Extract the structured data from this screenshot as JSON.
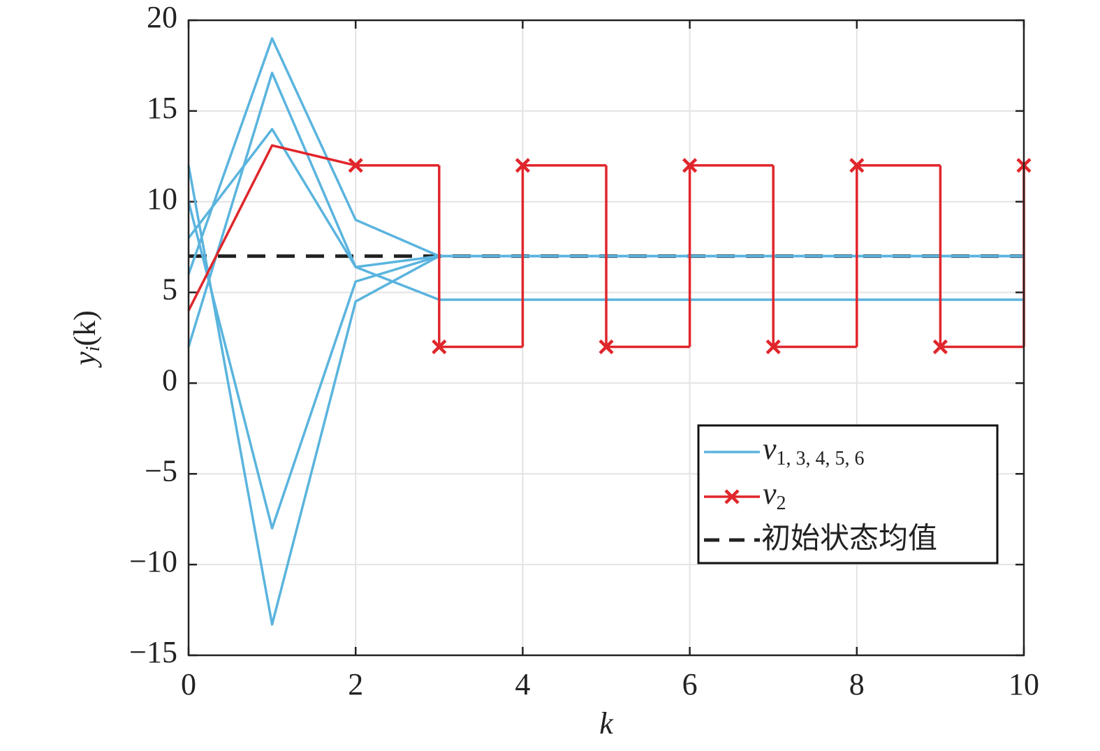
{
  "chart_data": {
    "type": "line",
    "xlabel": "k",
    "ylabel": {
      "base": "y",
      "sub": "i",
      "rest": "(k)"
    },
    "x": [
      0,
      1,
      2,
      3,
      4,
      5,
      6,
      7,
      8,
      9,
      10
    ],
    "xlim": [
      0,
      10
    ],
    "xticks": [
      0,
      2,
      4,
      6,
      8,
      10
    ],
    "ylim": [
      -15,
      20
    ],
    "yticks": [
      {
        "value": -15,
        "label": "−15"
      },
      {
        "value": -10,
        "label": "−10"
      },
      {
        "value": -5,
        "label": "−5"
      },
      0,
      5,
      10,
      15,
      20
    ],
    "grid": true,
    "legend_loc": "lower right",
    "series": [
      {
        "name": "v",
        "name_sub": "1, 3, 4, 5, 6",
        "color": "#5ab4de",
        "values": [
          6,
          19,
          9,
          7,
          7,
          7,
          7,
          7,
          7,
          7,
          7
        ]
      },
      {
        "color": "#5ab4de",
        "values": [
          2,
          17.1,
          6.4,
          4.6,
          4.6,
          4.6,
          4.6,
          4.6,
          4.6,
          4.6,
          4.6
        ]
      },
      {
        "color": "#5ab4de",
        "values": [
          8,
          14,
          6.4,
          7,
          7,
          7,
          7,
          7,
          7,
          7,
          7
        ]
      },
      {
        "color": "#5ab4de",
        "values": [
          10,
          -8,
          5.6,
          7,
          7,
          7,
          7,
          7,
          7,
          7,
          7
        ]
      },
      {
        "color": "#5ab4de",
        "values": [
          12,
          -13.3,
          4.5,
          7,
          7,
          7,
          7,
          7,
          7,
          7,
          7
        ]
      },
      {
        "name": "v",
        "name_sub": "2",
        "color": "#e0262b",
        "marker": "x",
        "step_start": 2,
        "values": [
          4,
          13.1,
          12,
          2,
          12,
          2,
          12,
          2,
          12,
          2,
          12
        ]
      }
    ],
    "reference": {
      "name": "初始状态均值",
      "value": 7,
      "color": "#222222",
      "style": "dashed"
    }
  }
}
